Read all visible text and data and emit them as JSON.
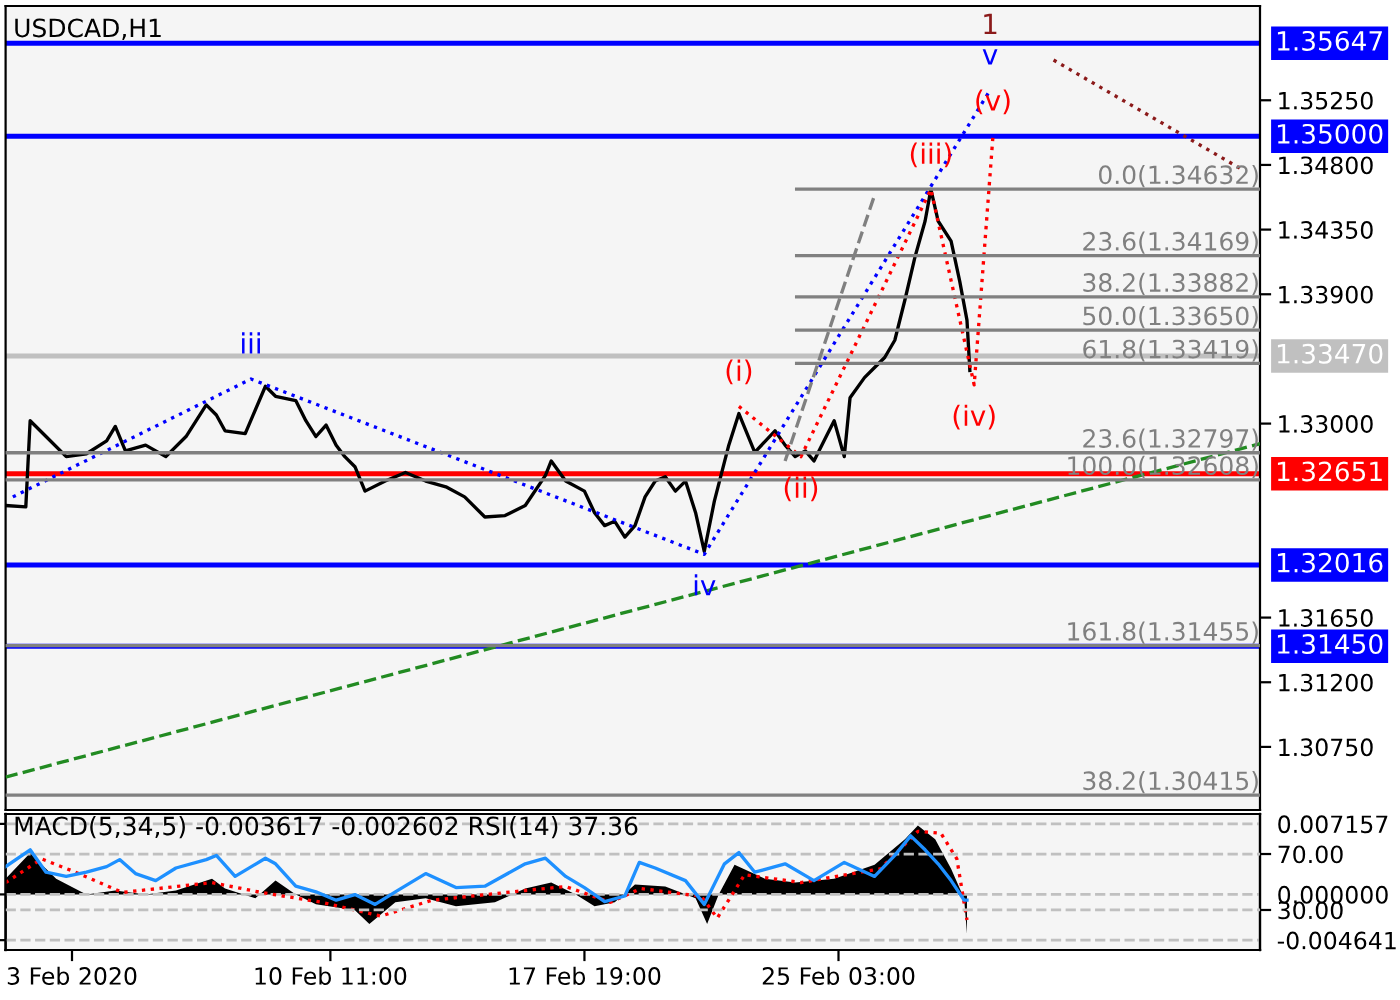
{
  "chart_data": [
    {
      "type": "line",
      "title": "USDCAD,H1",
      "xlim": [
        "2020-02-01T02:00",
        "2020-03-08T07:00"
      ],
      "ylim": [
        1.30311,
        1.35906
      ],
      "yticks": [
        {
          "value": 1.3525,
          "label": "1.35250"
        },
        {
          "value": 1.348,
          "label": "1.34800"
        },
        {
          "value": 1.3435,
          "label": "1.34350"
        },
        {
          "value": 1.339,
          "label": "1.33900"
        },
        {
          "value": 1.33,
          "label": "1.33000"
        },
        {
          "value": 1.3165,
          "label": "1.31650"
        },
        {
          "value": 1.312,
          "label": "1.31200"
        },
        {
          "value": 1.3075,
          "label": "1.30750"
        }
      ],
      "tick_labels": "y",
      "series": [
        {
          "color": "#000000",
          "line_style": "solid",
          "x": [
            "2020-02-01T02:00",
            "2020-02-01T16:00",
            "2020-02-01T19:00",
            "2020-02-02T06:00",
            "2020-02-02T20:00",
            "2020-02-03T10:00",
            "2020-02-04T00:00",
            "2020-02-04T06:00",
            "2020-02-04T13:00",
            "2020-02-05T03:00",
            "2020-02-05T17:00",
            "2020-02-06T07:00",
            "2020-02-06T21:00",
            "2020-02-07T04:00",
            "2020-02-07T10:00",
            "2020-02-08T00:00",
            "2020-02-08T14:00",
            "2020-02-08T21:00",
            "2020-02-09T11:00",
            "2020-02-09T18:00",
            "2020-02-10T01:00",
            "2020-02-10T08:00",
            "2020-02-10T15:00",
            "2020-02-10T21:00",
            "2020-02-11T04:00",
            "2020-02-11T11:00",
            "2020-02-12T01:00",
            "2020-02-12T15:00",
            "2020-02-13T05:00",
            "2020-02-13T19:00",
            "2020-02-14T08:00",
            "2020-02-14T22:00",
            "2020-02-15T12:00",
            "2020-02-16T02:00",
            "2020-02-16T16:00",
            "2020-02-16T20:00",
            "2020-02-17T06:00",
            "2020-02-17T19:00",
            "2020-02-18T02:00",
            "2020-02-18T09:00",
            "2020-02-18T16:00",
            "2020-02-18T23:00",
            "2020-02-19T06:00",
            "2020-02-19T13:00",
            "2020-02-19T20:00",
            "2020-02-20T03:00",
            "2020-02-20T10:00",
            "2020-02-20T17:00",
            "2020-02-21T00:00",
            "2020-02-21T06:00",
            "2020-02-21T13:00",
            "2020-02-21T23:00",
            "2020-02-22T06:00",
            "2020-02-22T17:00",
            "2020-02-23T07:00",
            "2020-02-23T14:00",
            "2020-02-23T21:00",
            "2020-02-24T04:00",
            "2020-02-24T10:00",
            "2020-02-24T17:00",
            "2020-02-25T00:00",
            "2020-02-25T07:00",
            "2020-02-25T11:00",
            "2020-02-25T21:00",
            "2020-02-26T04:00",
            "2020-02-26T11:00",
            "2020-02-26T18:00",
            "2020-02-27T01:00",
            "2020-02-27T08:00",
            "2020-02-27T15:00",
            "2020-02-27T19:00",
            "2020-02-28T00:00",
            "2020-02-28T09:00",
            "2020-02-28T15:00",
            "2020-02-28T20:00",
            "2020-02-28T22:00"
          ],
          "values": [
            1.3243,
            1.3242,
            1.3302,
            1.3291,
            1.3277,
            1.3279,
            1.3288,
            1.3298,
            1.3281,
            1.3285,
            1.3277,
            1.3291,
            1.3313,
            1.3306,
            1.3295,
            1.3293,
            1.3326,
            1.3319,
            1.3316,
            1.3302,
            1.3291,
            1.3299,
            1.3285,
            1.3277,
            1.327,
            1.3253,
            1.326,
            1.3266,
            1.326,
            1.3256,
            1.3249,
            1.3235,
            1.3236,
            1.3243,
            1.3264,
            1.3274,
            1.326,
            1.3253,
            1.3238,
            1.3229,
            1.3232,
            1.3221,
            1.3229,
            1.3249,
            1.326,
            1.3263,
            1.3253,
            1.326,
            1.3238,
            1.3211,
            1.3246,
            1.3285,
            1.3307,
            1.328,
            1.3295,
            1.3285,
            1.3277,
            1.3281,
            1.3274,
            1.3288,
            1.3302,
            1.3277,
            1.3318,
            1.3332,
            1.3339,
            1.3346,
            1.3358,
            1.3386,
            1.3416,
            1.3441,
            1.3463,
            1.3441,
            1.3427,
            1.3399,
            1.3372,
            1.3337
          ]
        },
        {
          "color": "#0000ff",
          "line_style": "dotted",
          "x": [
            "2020-02-01T07:00",
            "2020-02-08T04:00",
            "2020-02-21T06:00",
            "2020-02-29T12:00"
          ],
          "values": [
            1.3249,
            1.3331,
            1.3209,
            1.3532
          ]
        },
        {
          "color": "#ff0000",
          "line_style": "dotted",
          "x": [
            "2020-02-22T06:00",
            "2020-02-24T01:00",
            "2020-02-27T19:00",
            "2020-02-29T01:00",
            "2020-02-29T14:00"
          ],
          "values": [
            1.3312,
            1.3277,
            1.3463,
            1.3327,
            1.35
          ]
        },
        {
          "color": "#8b1a1a",
          "line_style": "dotted",
          "x": [
            "2020-03-02T08:00",
            "2020-03-07T20:00"
          ],
          "values": [
            1.3553,
            1.3476
          ]
        },
        {
          "color": "#808080",
          "line_style": "dashed",
          "x": [
            "2020-02-23T14:00",
            "2020-02-26T04:00"
          ],
          "values": [
            1.3274,
            1.3459
          ]
        },
        {
          "color": "#228b22",
          "line_style": "dashed",
          "x": [
            "2020-02-01T02:00",
            "2020-03-08T07:00"
          ],
          "values": [
            1.3054,
            1.3286
          ]
        },
        {
          "color": "#808080",
          "line_style": "solid",
          "x": [
            "2020-02-23T22:00",
            "2020-03-08T07:00"
          ],
          "values": [
            1.34632,
            1.34632
          ]
        },
        {
          "color": "#808080",
          "line_style": "solid",
          "x": [
            "2020-02-23T22:00",
            "2020-03-08T07:00"
          ],
          "values": [
            1.34169,
            1.34169
          ]
        },
        {
          "color": "#808080",
          "line_style": "solid",
          "x": [
            "2020-02-23T22:00",
            "2020-03-08T07:00"
          ],
          "values": [
            1.33882,
            1.33882
          ]
        },
        {
          "color": "#808080",
          "line_style": "solid",
          "x": [
            "2020-02-23T22:00",
            "2020-03-08T07:00"
          ],
          "values": [
            1.3365,
            1.3365
          ]
        },
        {
          "color": "#808080",
          "line_style": "solid",
          "x": [
            "2020-02-23T22:00",
            "2020-03-08T07:00"
          ],
          "values": [
            1.33419,
            1.33419
          ]
        },
        {
          "color": "#808080",
          "line_style": "solid",
          "x": [
            "2020-02-01T02:00",
            "2020-03-08T07:00"
          ],
          "values": [
            1.32797,
            1.32797
          ]
        },
        {
          "color": "#808080",
          "line_style": "solid",
          "x": [
            "2020-02-01T02:00",
            "2020-03-08T07:00"
          ],
          "values": [
            1.32608,
            1.32608
          ]
        },
        {
          "color": "#808080",
          "line_style": "solid",
          "x": [
            "2020-02-01T02:00",
            "2020-03-08T07:00"
          ],
          "values": [
            1.31455,
            1.31455
          ]
        },
        {
          "color": "#808080",
          "line_style": "solid",
          "x": [
            "2020-02-01T02:00",
            "2020-03-08T07:00"
          ],
          "values": [
            1.30415,
            1.30415
          ]
        }
      ],
      "ref_lines": [
        {
          "axis": "y",
          "value": 1.35647,
          "label": "1.35647",
          "color": "#0000ff"
        },
        {
          "axis": "y",
          "value": 1.35,
          "label": "1.35000",
          "color": "#0000ff"
        },
        {
          "axis": "y",
          "value": 1.3347,
          "label": "1.33470",
          "color": "#c0c0c0"
        },
        {
          "axis": "y",
          "value": 1.32651,
          "label": "1.32651",
          "color": "#ff0000"
        },
        {
          "axis": "y",
          "value": 1.32016,
          "label": "1.32016",
          "color": "#0000ff"
        },
        {
          "axis": "y",
          "value": 1.3145,
          "label": "1.31450",
          "color": "#0000ff"
        }
      ],
      "annotations": [
        {
          "text": "iii",
          "x": "2020-02-08T04:00",
          "y": 1.3331
        },
        {
          "text": "iv",
          "x": "2020-02-21T06:00",
          "y": 1.3209
        },
        {
          "text": "v",
          "x": "2020-02-29T12:00",
          "y": 1.3532
        },
        {
          "text": "1",
          "x": "2020-02-29T12:00",
          "y": 1.3532
        },
        {
          "text": "(i)",
          "x": "2020-02-22T06:00",
          "y": 1.3312
        },
        {
          "text": "(ii)",
          "x": "2020-02-24T01:00",
          "y": 1.3277
        },
        {
          "text": "(iii)",
          "x": "2020-02-27T19:00",
          "y": 1.3463
        },
        {
          "text": "(iv)",
          "x": "2020-02-29T01:00",
          "y": 1.3327
        },
        {
          "text": "(v)",
          "x": "2020-02-29T14:00",
          "y": 1.35
        },
        {
          "text": "0.0(1.34632)",
          "x": "2020-03-08T07:00",
          "y": 1.34632
        },
        {
          "text": "23.6(1.34169)",
          "x": "2020-03-08T07:00",
          "y": 1.34169
        },
        {
          "text": "38.2(1.33882)",
          "x": "2020-03-08T07:00",
          "y": 1.33882
        },
        {
          "text": "50.0(1.33650)",
          "x": "2020-03-08T07:00",
          "y": 1.3365
        },
        {
          "text": "61.8(1.33419)",
          "x": "2020-03-08T07:00",
          "y": 1.33419
        },
        {
          "text": "23.6(1.32797)",
          "x": "2020-03-08T07:00",
          "y": 1.32797
        },
        {
          "text": "100.0(1.32608)",
          "x": "2020-03-08T07:00",
          "y": 1.32608
        },
        {
          "text": "161.8(1.31455)",
          "x": "2020-03-08T07:00",
          "y": 1.31455
        },
        {
          "text": "38.2(1.30415)",
          "x": "2020-03-08T07:00",
          "y": 1.30415
        }
      ]
    },
    {
      "type": "area",
      "title": "MACD(5,34,5) -0.003617 -0.002602 RSI(14) 37.36",
      "xlim": [
        "2020-02-01T02:00",
        "2020-03-08T07:00"
      ],
      "ylim": [
        -0.00564,
        0.00816
      ],
      "xticks": [
        {
          "value": "2020-02-03T00:00",
          "label": "3 Feb 2020"
        },
        {
          "value": "2020-02-10T11:00",
          "label": "10 Feb 11:00"
        },
        {
          "value": "2020-02-17T19:00",
          "label": "17 Feb 19:00"
        },
        {
          "value": "2020-02-25T03:00",
          "label": "25 Feb 03:00"
        }
      ],
      "yticks": [
        0.007157,
        {
          "value": 0,
          "label": "0.000000"
        },
        -0.004641
      ],
      "y2lim": [
        1.4,
        98.6
      ],
      "y2ticks": [
        {
          "value": 70,
          "label": "70.00"
        },
        {
          "value": 30,
          "label": "30.00"
        }
      ],
      "series": [
        {
          "type": "area",
          "color": "#000000",
          "x": [
            "2020-02-01T02:00",
            "2020-02-01T19:00",
            "2020-02-02T13:00",
            "2020-02-03T10:00",
            "2020-02-04T06:00",
            "2020-02-05T03:00",
            "2020-02-06T00:00",
            "2020-02-07T01:00",
            "2020-02-07T10:00",
            "2020-02-08T07:00",
            "2020-02-08T21:00",
            "2020-02-09T11:00",
            "2020-02-10T01:00",
            "2020-02-11T04:00",
            "2020-02-11T14:00",
            "2020-02-12T08:00",
            "2020-02-13T05:00",
            "2020-02-14T02:00",
            "2020-02-15T05:00",
            "2020-02-16T02:00",
            "2020-02-16T20:00",
            "2020-02-17T13:00",
            "2020-02-18T02:00",
            "2020-02-18T16:00",
            "2020-02-19T06:00",
            "2020-02-20T03:00",
            "2020-02-21T00:00",
            "2020-02-21T08:00",
            "2020-02-21T16:00",
            "2020-02-22T03:00",
            "2020-02-23T00:00",
            "2020-02-23T21:00",
            "2020-02-25T00:00",
            "2020-02-26T04:00",
            "2020-02-27T01:00",
            "2020-02-27T10:00",
            "2020-02-27T22:00",
            "2020-02-28T09:00",
            "2020-02-28T18:00",
            "2020-02-28T20:00"
          ],
          "values": [
            0.0016,
            0.0042,
            0.0016,
            0,
            0.0004,
            0,
            0.0004,
            0.0016,
            0.0006,
            -0.0004,
            0.0014,
            0,
            -0.001,
            -0.0016,
            -0.003,
            -0.0008,
            -0.0004,
            -0.0012,
            -0.0008,
            0.0006,
            0.0012,
            0,
            -0.0012,
            -0.0008,
            0.001,
            0.0008,
            -0.0004,
            -0.003,
            0,
            0.003,
            0.0016,
            0.0012,
            0.0016,
            0.003,
            0.0056,
            0.007,
            0.0056,
            0.0026,
            -0.0004,
            -0.004
          ]
        },
        {
          "type": "line",
          "color": "#ff0000",
          "line_style": "dotted",
          "x": [
            "2020-02-01T02:00",
            "2020-02-02T03:00",
            "2020-02-03T00:00",
            "2020-02-04T11:00",
            "2020-02-07T01:00",
            "2020-02-08T11:00",
            "2020-02-10T05:00",
            "2020-02-11T22:00",
            "2020-02-13T09:00",
            "2020-02-16T02:00",
            "2020-02-17T06:00",
            "2020-02-18T13:00",
            "2020-02-19T10:00",
            "2020-02-21T04:00",
            "2020-02-21T15:00",
            "2020-02-22T10:00",
            "2020-02-24T01:00",
            "2020-02-26T08:00",
            "2020-02-27T10:00",
            "2020-02-28T02:00",
            "2020-02-28T13:00",
            "2020-02-28T20:00"
          ],
          "values": [
            0.0012,
            0.0036,
            0.0024,
            0.0002,
            0.0012,
            0.0002,
            -0.0008,
            -0.0022,
            -0.0006,
            0.0004,
            0.0008,
            -0.0008,
            0.0006,
            -0.0002,
            -0.0024,
            0.002,
            0.0012,
            0.0026,
            0.0064,
            0.0062,
            0.0036,
            -0.0026
          ]
        },
        {
          "type": "line",
          "axis": "y2",
          "color": "#1e90ff",
          "line_style": "solid",
          "x": [
            "2020-02-01T02:00",
            "2020-02-01T19:00",
            "2020-02-02T06:00",
            "2020-02-02T20:00",
            "2020-02-03T10:00",
            "2020-02-04T00:00",
            "2020-02-04T09:00",
            "2020-02-04T20:00",
            "2020-02-05T10:00",
            "2020-02-06T00:00",
            "2020-02-06T21:00",
            "2020-02-07T04:00",
            "2020-02-07T17:00",
            "2020-02-08T14:00",
            "2020-02-08T21:00",
            "2020-02-09T11:00",
            "2020-02-10T01:00",
            "2020-02-10T15:00",
            "2020-02-11T04:00",
            "2020-02-11T18:00",
            "2020-02-12T08:00",
            "2020-02-13T05:00",
            "2020-02-14T02:00",
            "2020-02-14T22:00",
            "2020-02-16T02:00",
            "2020-02-16T16:00",
            "2020-02-17T06:00",
            "2020-02-17T19:00",
            "2020-02-18T09:00",
            "2020-02-18T23:00",
            "2020-02-19T09:00",
            "2020-02-19T20:00",
            "2020-02-20T17:00",
            "2020-02-21T06:00",
            "2020-02-21T20:00",
            "2020-02-22T06:00",
            "2020-02-22T17:00",
            "2020-02-23T14:00",
            "2020-02-24T10:00",
            "2020-02-25T07:00",
            "2020-02-26T04:00",
            "2020-02-26T18:00",
            "2020-02-27T05:00",
            "2020-02-27T15:00",
            "2020-02-28T00:00",
            "2020-02-28T09:00",
            "2020-02-28T18:00",
            "2020-02-28T20:00"
          ],
          "values": [
            61,
            73,
            57,
            54,
            57,
            61,
            66,
            56,
            51,
            60,
            66,
            69,
            54,
            67,
            63,
            47,
            43,
            37,
            41,
            34,
            43,
            56,
            46,
            47,
            63,
            67,
            54,
            46,
            36,
            40,
            64,
            60,
            51,
            34,
            63,
            71,
            57,
            63,
            51,
            64,
            54,
            69,
            83,
            73,
            63,
            51,
            37,
            37
          ]
        }
      ],
      "grid": "y"
    }
  ]
}
